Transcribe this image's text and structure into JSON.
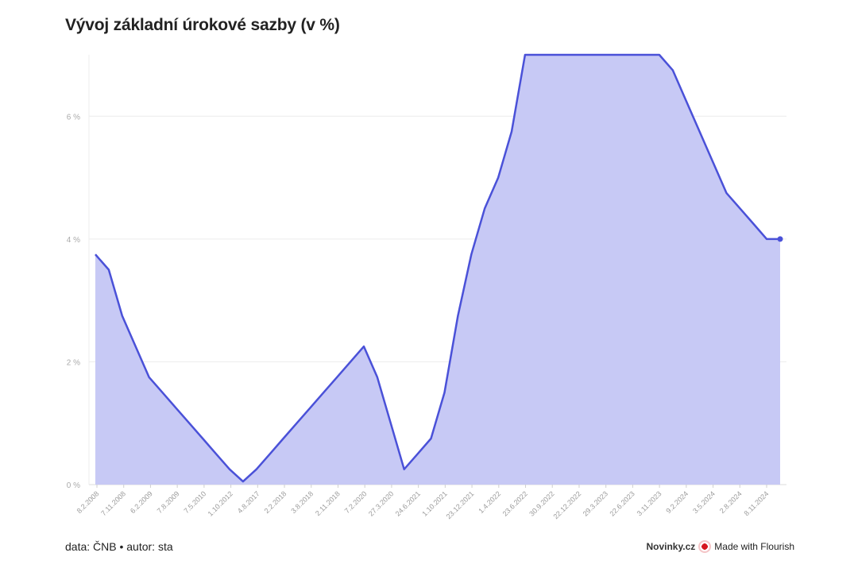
{
  "header": {
    "title": "Vývoj základní úrokové sazby (v %)"
  },
  "footer": {
    "source": "data: ČNB • autor: sta",
    "brand": "Novinky.cz",
    "made_with": "Made with Flourish"
  },
  "colors": {
    "line": "#4a51d8",
    "area": "#c7c9f5",
    "grid": "#ececec",
    "axis": "#dddddd"
  },
  "chart_data": {
    "type": "area",
    "title": "Vývoj základní úrokové sazby (v %)",
    "ylim": [
      0,
      7
    ],
    "yticks": [
      0,
      2,
      4,
      6
    ],
    "ytick_labels": [
      "0 %",
      "2 %",
      "4 %",
      "6 %"
    ],
    "grid": true,
    "legend": "none",
    "xtick_labels": [
      "8.2.2008",
      "7.11.2008",
      "6.2.2009",
      "7.8.2009",
      "7.5.2010",
      "1.10.2012",
      "4.8.2017",
      "2.2.2018",
      "3.8.2018",
      "2.11.2018",
      "7.2.2020",
      "27.3.2020",
      "24.6.2021",
      "1.10.2021",
      "23.12.2021",
      "1.4.2022",
      "23.6.2022",
      "30.9.2022",
      "22.12.2022",
      "29.3.2023",
      "22.6.2023",
      "3.11.2023",
      "9.2.2024",
      "3.5.2024",
      "2.8.2024",
      "8.11.2024"
    ],
    "series": [
      {
        "values": [
          3.75,
          3.5,
          2.75,
          2.25,
          1.75,
          1.5,
          1.25,
          1.0,
          0.75,
          0.5,
          0.25,
          0.05,
          0.25,
          0.5,
          0.75,
          1.0,
          1.25,
          1.5,
          1.75,
          2.0,
          2.25,
          1.75,
          1.0,
          0.25,
          0.5,
          0.75,
          1.5,
          2.75,
          3.75,
          4.5,
          5.0,
          5.75,
          7.0,
          7.0,
          7.0,
          7.0,
          7.0,
          7.0,
          7.0,
          7.0,
          7.0,
          7.0,
          7.0,
          6.75,
          6.25,
          5.75,
          5.25,
          4.75,
          4.5,
          4.25,
          4.0,
          4.0
        ]
      }
    ]
  }
}
